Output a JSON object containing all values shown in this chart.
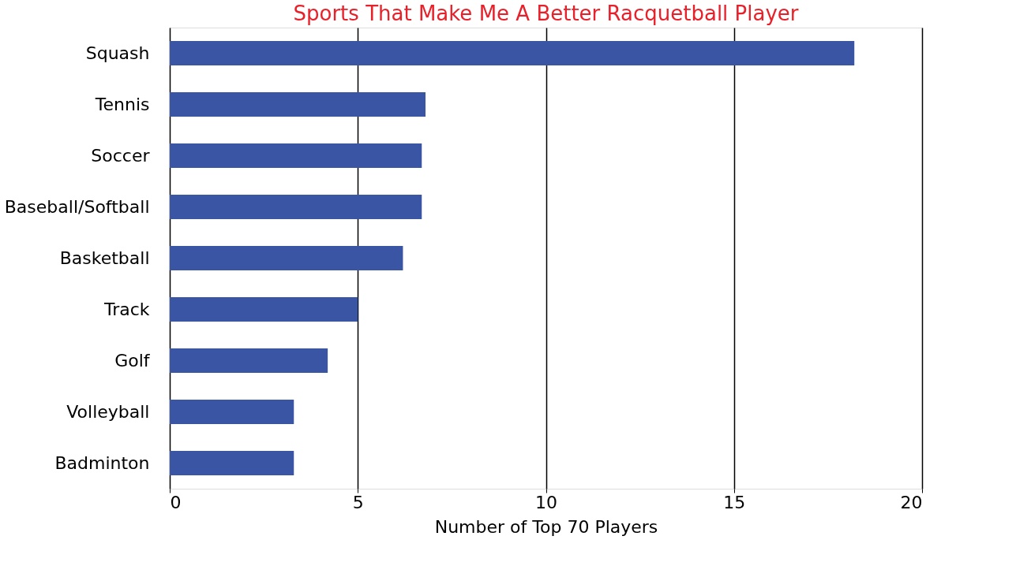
{
  "chart_data": {
    "type": "bar",
    "orientation": "horizontal",
    "title": "Sports That Make Me A Better Racquetball Player",
    "xlabel": "Number of Top 70 Players",
    "categories": [
      "Squash",
      "Tennis",
      "Soccer",
      "Baseball/Softball",
      "Basketball",
      "Track",
      "Golf",
      "Volleyball",
      "Badminton"
    ],
    "values": [
      18.2,
      6.8,
      6.7,
      6.7,
      6.2,
      5,
      4.2,
      3.3,
      3.3
    ],
    "color": "#3a55a4",
    "xlim": [
      0,
      20
    ],
    "xticks": [
      0,
      5,
      10,
      15,
      20
    ],
    "grid": "x"
  }
}
